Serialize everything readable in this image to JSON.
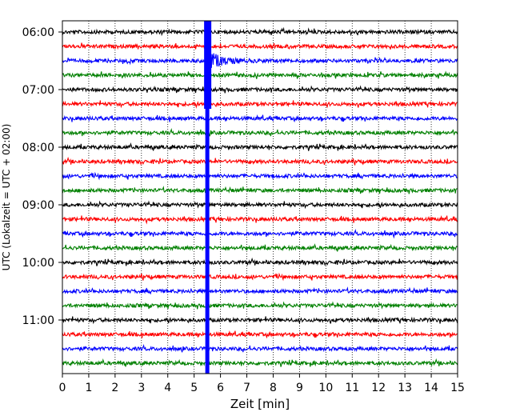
{
  "chart_data": {
    "type": "line",
    "xlabel": "Zeit  [min]",
    "ylabel": "UTC (Lokalzeit = UTC + 02:00)",
    "xlim": [
      0,
      15
    ],
    "xticks": [
      0,
      1,
      2,
      3,
      4,
      5,
      6,
      7,
      8,
      9,
      10,
      11,
      12,
      13,
      14,
      15
    ],
    "ytick_labels": [
      "06:00",
      "07:00",
      "08:00",
      "09:00",
      "10:00",
      "11:00"
    ],
    "ytick_rows": [
      0,
      4,
      8,
      12,
      16,
      20
    ],
    "grid_x": true,
    "row_start": "06:00",
    "row_interval_min": 15,
    "row_colors": [
      "#000000",
      "#ff0000",
      "#0000ff",
      "#008000"
    ],
    "rows": [
      {
        "start": "06:00",
        "color": "#000000"
      },
      {
        "start": "06:15",
        "color": "#ff0000"
      },
      {
        "start": "06:30",
        "color": "#0000ff"
      },
      {
        "start": "06:45",
        "color": "#008000"
      },
      {
        "start": "07:00",
        "color": "#000000"
      },
      {
        "start": "07:15",
        "color": "#ff0000"
      },
      {
        "start": "07:30",
        "color": "#0000ff"
      },
      {
        "start": "07:45",
        "color": "#008000"
      },
      {
        "start": "08:00",
        "color": "#000000"
      },
      {
        "start": "08:15",
        "color": "#ff0000"
      },
      {
        "start": "08:30",
        "color": "#0000ff"
      },
      {
        "start": "08:45",
        "color": "#008000"
      },
      {
        "start": "09:00",
        "color": "#000000"
      },
      {
        "start": "09:15",
        "color": "#ff0000"
      },
      {
        "start": "09:30",
        "color": "#0000ff"
      },
      {
        "start": "09:45",
        "color": "#008000"
      },
      {
        "start": "10:00",
        "color": "#000000"
      },
      {
        "start": "10:15",
        "color": "#ff0000"
      },
      {
        "start": "10:30",
        "color": "#0000ff"
      },
      {
        "start": "10:45",
        "color": "#008000"
      },
      {
        "start": "11:00",
        "color": "#000000"
      },
      {
        "start": "11:15",
        "color": "#ff0000"
      },
      {
        "start": "11:30",
        "color": "#0000ff"
      },
      {
        "start": "11:45",
        "color": "#008000"
      }
    ],
    "event": {
      "row": 2,
      "time_min": 5.5,
      "color": "#0000ff"
    }
  }
}
